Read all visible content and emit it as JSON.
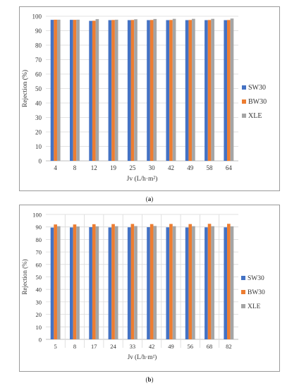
{
  "captions": [
    "a",
    "b"
  ],
  "chart_data": [
    {
      "type": "bar",
      "xlabel": "Jv (L/h·m²)",
      "ylabel": "Rejection (%)",
      "ylim": [
        0,
        100
      ],
      "yticks": [
        0,
        10,
        20,
        30,
        40,
        50,
        60,
        70,
        80,
        90,
        100
      ],
      "grid": true,
      "legend": "right",
      "categories": [
        "4",
        "8",
        "12",
        "19",
        "25",
        "30",
        "42",
        "49",
        "58",
        "64"
      ],
      "series": [
        {
          "name": "SW30",
          "color": "#4472C4",
          "values": [
            97.5,
            97.5,
            96.8,
            97.3,
            97.3,
            97.3,
            97.3,
            97.3,
            97.3,
            97.3
          ]
        },
        {
          "name": "BW30",
          "color": "#ED7D31",
          "values": [
            97.6,
            97.5,
            96.9,
            97.4,
            97.4,
            97.4,
            97.4,
            97.4,
            97.4,
            97.4
          ]
        },
        {
          "name": "XLE",
          "color": "#A5A5A5",
          "values": [
            97.6,
            97.6,
            98.0,
            97.6,
            97.9,
            98.1,
            98.2,
            98.2,
            98.2,
            98.4
          ]
        }
      ]
    },
    {
      "type": "bar",
      "xlabel": "Jv (L/h·m²)",
      "ylabel": "Rejection (%)",
      "ylim": [
        0,
        100
      ],
      "yticks": [
        0,
        10,
        20,
        30,
        40,
        50,
        60,
        70,
        80,
        90,
        100
      ],
      "grid": true,
      "legend": "right",
      "categories": [
        "5",
        "8",
        "17",
        "24",
        "33",
        "42",
        "49",
        "56",
        "68",
        "82"
      ],
      "series": [
        {
          "name": "SW30",
          "color": "#4472C4",
          "values": [
            89.5,
            89.6,
            89.8,
            89.6,
            89.7,
            89.8,
            89.7,
            89.6,
            89.7,
            89.7
          ]
        },
        {
          "name": "BW30",
          "color": "#ED7D31",
          "values": [
            92.0,
            92.0,
            92.2,
            92.3,
            92.4,
            92.3,
            92.4,
            92.3,
            92.5,
            92.5
          ]
        },
        {
          "name": "XLE",
          "color": "#A5A5A5",
          "values": [
            90.6,
            90.4,
            90.5,
            90.6,
            90.7,
            90.8,
            90.6,
            90.6,
            90.6,
            90.5
          ]
        }
      ]
    }
  ]
}
